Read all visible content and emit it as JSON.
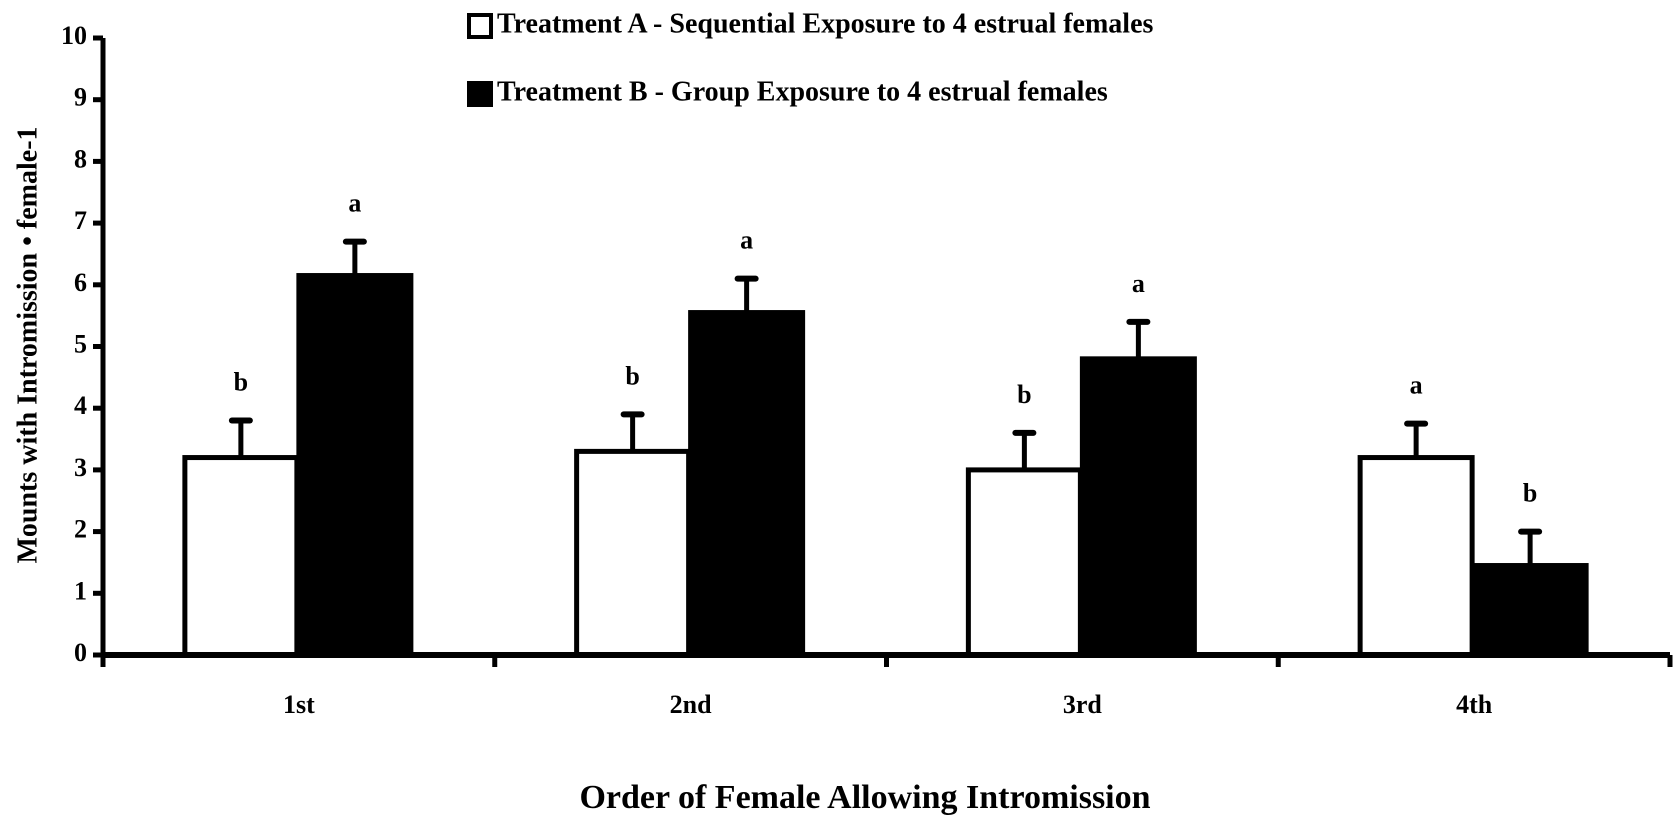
{
  "chart_data": {
    "type": "bar",
    "xlabel": "Order of Female Allowing Intromission",
    "ylabel": "Mounts with Intromission • female-1",
    "categories": [
      "1st",
      "2nd",
      "3rd",
      "4th"
    ],
    "series": [
      {
        "name": "Treatment A - Sequential Exposure to 4 estrual females",
        "color": "#ffffff",
        "values": [
          3.2,
          3.3,
          3.0,
          3.2
        ],
        "errors": [
          0.6,
          0.6,
          0.6,
          0.55
        ],
        "letters": [
          "b",
          "b",
          "b",
          "a"
        ]
      },
      {
        "name": "Treatment B - Group Exposure to 4 estrual females",
        "color": "#000000",
        "values": [
          6.15,
          5.55,
          4.8,
          1.45
        ],
        "errors": [
          0.55,
          0.55,
          0.6,
          0.55
        ],
        "letters": [
          "a",
          "a",
          "a",
          "b"
        ]
      }
    ],
    "ylim": [
      0,
      10
    ],
    "yticks": [
      0,
      1,
      2,
      3,
      4,
      5,
      6,
      7,
      8,
      9,
      10
    ],
    "grid": false,
    "legend": "top"
  }
}
